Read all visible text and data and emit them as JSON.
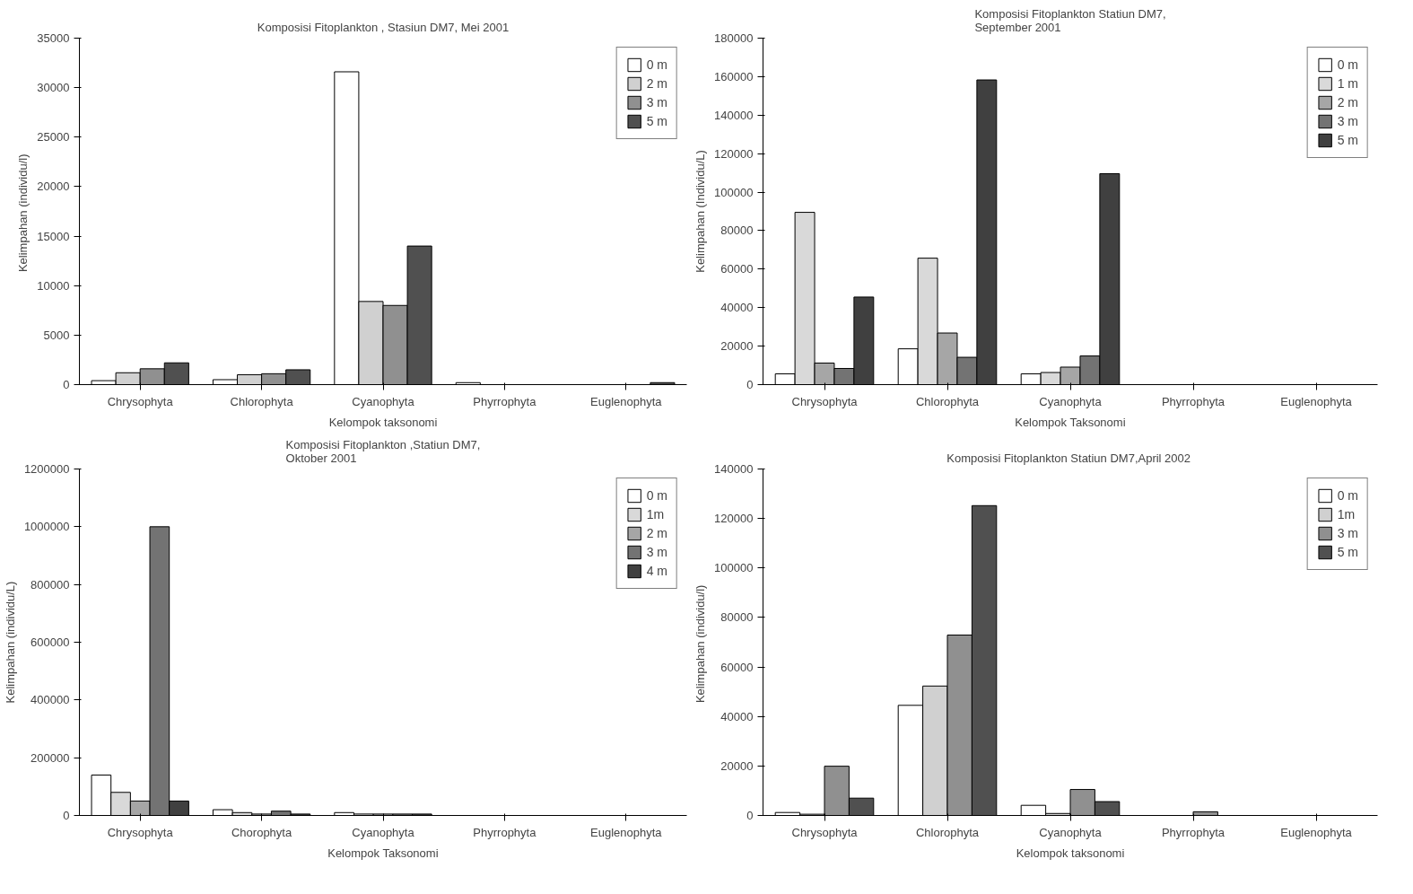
{
  "chart_data": [
    {
      "type": "bar",
      "title": "Komposisi Fitoplankton , Stasiun DM7, Mei 2001",
      "xlabel": "Kelompok taksonomi",
      "ylabel": "Kelimpahan  (individu/l)",
      "categories": [
        "Chrysophyta",
        "Chlorophyta",
        "Cyanophyta",
        "Phyrrophyta",
        "Euglenophyta"
      ],
      "series": [
        {
          "name": "0 m",
          "color": "#ffffff",
          "values": [
            400,
            500,
            31600,
            200,
            null
          ]
        },
        {
          "name": "2 m",
          "color": "#d0d0d0",
          "values": [
            1200,
            1000,
            8400,
            null,
            null
          ]
        },
        {
          "name": "3 m",
          "color": "#909090",
          "values": [
            1600,
            1100,
            8000,
            null,
            null
          ]
        },
        {
          "name": "5 m",
          "color": "#505050",
          "values": [
            2200,
            1500,
            14000,
            null,
            200
          ]
        }
      ],
      "ylim": [
        0,
        35000
      ],
      "yticks": [
        0,
        5000,
        10000,
        15000,
        20000,
        25000,
        30000,
        35000
      ],
      "grid": false,
      "legend": "top right"
    },
    {
      "type": "bar",
      "title": "Komposisi Fitoplankton Statiun DM7,\nSeptember 2001",
      "xlabel": "Kelompok Taksonomi",
      "ylabel": "Kelimpahan (Individu/L)",
      "categories": [
        "Chrysophyta",
        "Chlorophyta",
        "Cyanophyta",
        "Phyrrophyta",
        "Euglenophyta"
      ],
      "series": [
        {
          "name": "0 m",
          "color": "#ffffff",
          "values": [
            5600,
            18600,
            5600,
            null,
            null
          ]
        },
        {
          "name": "1 m",
          "color": "#d9d9d9",
          "values": [
            89500,
            65700,
            6300,
            null,
            null
          ]
        },
        {
          "name": "2 m",
          "color": "#a6a6a6",
          "values": [
            11200,
            26800,
            9100,
            null,
            null
          ]
        },
        {
          "name": "3 m",
          "color": "#737373",
          "values": [
            8400,
            14200,
            14900,
            null,
            null
          ]
        },
        {
          "name": "5 m",
          "color": "#404040",
          "values": [
            45500,
            158300,
            109600,
            null,
            null
          ]
        }
      ],
      "ylim": [
        0,
        180000
      ],
      "yticks": [
        0,
        20000,
        40000,
        60000,
        80000,
        100000,
        120000,
        140000,
        160000,
        180000
      ],
      "grid": false,
      "legend": "top right"
    },
    {
      "type": "bar",
      "title": "Komposisi Fitoplankton ,Statiun DM7,\nOktober 2001",
      "xlabel": "Kelompok Taksonomi",
      "ylabel": "Kelimpahan (individu/L)",
      "categories": [
        "Chrysophyta",
        "Chorophyta",
        "Cyanophyta",
        "Phyrrophyta",
        "Euglenophyta"
      ],
      "series": [
        {
          "name": "0 m",
          "color": "#ffffff",
          "values": [
            140000,
            20000,
            10000,
            null,
            null
          ]
        },
        {
          "name": "1m",
          "color": "#d9d9d9",
          "values": [
            80000,
            10000,
            5000,
            null,
            null
          ]
        },
        {
          "name": "2 m",
          "color": "#a6a6a6",
          "values": [
            50000,
            5000,
            5000,
            null,
            null
          ]
        },
        {
          "name": "3 m",
          "color": "#737373",
          "values": [
            1000000,
            15000,
            5000,
            null,
            null
          ]
        },
        {
          "name": "4 m",
          "color": "#404040",
          "values": [
            50000,
            5000,
            5000,
            null,
            null
          ]
        }
      ],
      "ylim": [
        0,
        1200000
      ],
      "yticks": [
        0,
        200000,
        400000,
        600000,
        800000,
        1000000,
        1200000
      ],
      "grid": false,
      "legend": "top right"
    },
    {
      "type": "bar",
      "title": "Komposisi Fitoplankton  Statiun DM7,April 2002",
      "xlabel": "Kelompok taksonomi",
      "ylabel": "Kelimpahan  (individu/l)",
      "categories": [
        "Chrysophyta",
        "Chlorophyta",
        "Cyanophyta",
        "Phyrrophyta",
        "Euglenophyta"
      ],
      "series": [
        {
          "name": "0 m",
          "color": "#ffffff",
          "values": [
            1200,
            44500,
            4100,
            null,
            null
          ]
        },
        {
          "name": "1m",
          "color": "#d0d0d0",
          "values": [
            500,
            52300,
            800,
            null,
            null
          ]
        },
        {
          "name": "3 m",
          "color": "#909090",
          "values": [
            19900,
            72900,
            10500,
            1500,
            null
          ]
        },
        {
          "name": "5 m",
          "color": "#505050",
          "values": [
            7000,
            125200,
            5600,
            null,
            null
          ]
        }
      ],
      "ylim": [
        0,
        140000
      ],
      "yticks": [
        0,
        20000,
        40000,
        60000,
        80000,
        100000,
        120000,
        140000
      ],
      "grid": false,
      "legend": "top right"
    }
  ]
}
